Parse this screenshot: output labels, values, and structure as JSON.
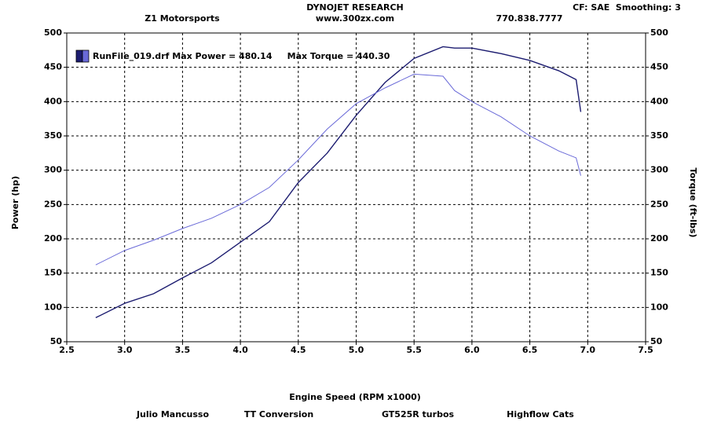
{
  "header": {
    "company": "DYNOJET RESEARCH",
    "website": "www.300zx.com",
    "shop": "Z1 Motorsports",
    "phone": "770.838.7777",
    "settings": "CF: SAE  Smoothing: 3"
  },
  "chart_data": {
    "type": "line",
    "xlabel": "Engine Speed (RPM x1000)",
    "ylabel": "Power (hp)",
    "y2label": "Torque (ft-lbs)",
    "legend_label": "RunFile_019.drf Max Power = 480.14     Max Torque = 440.30",
    "x": [
      2.75,
      3.0,
      3.25,
      3.5,
      3.75,
      4.0,
      4.25,
      4.5,
      4.75,
      5.0,
      5.25,
      5.5,
      5.75,
      5.85,
      6.0,
      6.25,
      6.5,
      6.75,
      6.9,
      6.94
    ],
    "series": [
      {
        "color": "#1c1c70",
        "values": [
          85,
          106,
          120,
          143,
          165,
          195,
          225,
          282,
          325,
          380,
          428,
          463,
          480,
          478,
          478,
          470,
          460,
          445,
          432,
          385
        ]
      },
      {
        "color": "#6a6ad8",
        "axis": "y2",
        "values": [
          162,
          183,
          198,
          215,
          230,
          250,
          275,
          315,
          360,
          397,
          420,
          440,
          437,
          416,
          400,
          378,
          350,
          328,
          318,
          292
        ]
      }
    ],
    "xlim": [
      2.5,
      7.5
    ],
    "xticks": [
      2.5,
      {
        "value": 3,
        "label": "3.0"
      },
      3.5,
      {
        "value": 4,
        "label": "4.0"
      },
      4.5,
      {
        "value": 5,
        "label": "5.0"
      },
      5.5,
      {
        "value": 6,
        "label": "6.0"
      },
      6.5,
      {
        "value": 7,
        "label": "7.0"
      },
      7.5
    ],
    "ylim": [
      50,
      500
    ],
    "yticks": [
      50,
      100,
      150,
      200,
      250,
      300,
      350,
      400,
      450,
      500
    ],
    "y2lim": [
      50,
      500
    ],
    "y2ticks": [
      50,
      100,
      150,
      200,
      250,
      300,
      350,
      400,
      450,
      500
    ],
    "grid": true
  },
  "footer": {
    "items": [
      "Julio Mancusso",
      "TT Conversion",
      "GT525R turbos",
      "Highflow Cats"
    ]
  }
}
